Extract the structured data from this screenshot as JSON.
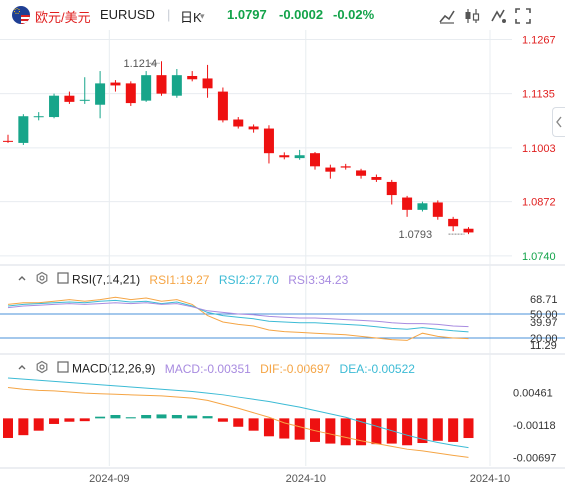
{
  "header": {
    "symbol_cn": "欧元/美元",
    "symbol": "EURUSD",
    "period": "日K",
    "last": "1.0797",
    "change": "-0.0002",
    "change_pct": "-0.02%",
    "toolbar_icons": [
      "line-chart-icon",
      "candle-chart-icon",
      "indicator-icon",
      "fullscreen-icon"
    ]
  },
  "colors": {
    "up": "#17a58a",
    "down": "#ee1111",
    "axis_text": "#13a34a",
    "price_text": "#e02020",
    "grid": "#e8ecf0",
    "rsi1": "#f5a545",
    "rsi2": "#3cbbd5",
    "rsi3": "#a88be0",
    "dif": "#f5a545",
    "dea": "#3cbbd5"
  },
  "rsi_header": {
    "name": "RSI(7,14,21)",
    "rsi1": "RSI1:19.27",
    "rsi2": "RSI2:27.70",
    "rsi3": "RSI3:34.23"
  },
  "macd_header": {
    "name": "MACD(12,26,9)",
    "macd": "MACD:-0.00351",
    "dif": "DIF:-0.00697",
    "dea": "DEA:-0.00522"
  },
  "chart_data": [
    {
      "type": "candlestick",
      "name": "EURUSD daily",
      "y_ticks": [
        "1.1267",
        "1.1135",
        "1.1003",
        "1.0872",
        "1.0740"
      ],
      "ylim": [
        1.0725,
        1.129
      ],
      "high_label": "1.1214",
      "low_label": "1.0793",
      "x_ticks": [
        "2024-09",
        "2024-10",
        "2024-10"
      ],
      "candles": [
        {
          "o": 1.102,
          "h": 1.1035,
          "l": 1.1015,
          "c": 1.1018
        },
        {
          "o": 1.1015,
          "h": 1.1085,
          "l": 1.101,
          "c": 1.108
        },
        {
          "o": 1.1078,
          "h": 1.109,
          "l": 1.107,
          "c": 1.108
        },
        {
          "o": 1.1078,
          "h": 1.1135,
          "l": 1.1075,
          "c": 1.113
        },
        {
          "o": 1.113,
          "h": 1.114,
          "l": 1.111,
          "c": 1.1115
        },
        {
          "o": 1.1118,
          "h": 1.1175,
          "l": 1.111,
          "c": 1.112
        },
        {
          "o": 1.1108,
          "h": 1.119,
          "l": 1.1075,
          "c": 1.116
        },
        {
          "o": 1.1162,
          "h": 1.1168,
          "l": 1.114,
          "c": 1.1155
        },
        {
          "o": 1.116,
          "h": 1.1165,
          "l": 1.1105,
          "c": 1.1112
        },
        {
          "o": 1.1118,
          "h": 1.119,
          "l": 1.1115,
          "c": 1.118
        },
        {
          "o": 1.118,
          "h": 1.1214,
          "l": 1.113,
          "c": 1.1135
        },
        {
          "o": 1.113,
          "h": 1.1195,
          "l": 1.1125,
          "c": 1.118
        },
        {
          "o": 1.1178,
          "h": 1.119,
          "l": 1.1165,
          "c": 1.117
        },
        {
          "o": 1.1172,
          "h": 1.1205,
          "l": 1.1125,
          "c": 1.1148
        },
        {
          "o": 1.114,
          "h": 1.115,
          "l": 1.1065,
          "c": 1.107
        },
        {
          "o": 1.1072,
          "h": 1.1078,
          "l": 1.105,
          "c": 1.1055
        },
        {
          "o": 1.1055,
          "h": 1.106,
          "l": 1.104,
          "c": 1.1048
        },
        {
          "o": 1.105,
          "h": 1.1058,
          "l": 1.0965,
          "c": 1.099
        },
        {
          "o": 1.0985,
          "h": 1.0992,
          "l": 1.0975,
          "c": 1.098
        },
        {
          "o": 1.0978,
          "h": 1.0998,
          "l": 1.0974,
          "c": 1.0985
        },
        {
          "o": 1.099,
          "h": 1.0993,
          "l": 1.095,
          "c": 1.0958
        },
        {
          "o": 1.0955,
          "h": 1.0962,
          "l": 1.0928,
          "c": 1.0945
        },
        {
          "o": 1.0958,
          "h": 1.0964,
          "l": 1.095,
          "c": 1.0955
        },
        {
          "o": 1.0948,
          "h": 1.0952,
          "l": 1.0928,
          "c": 1.0935
        },
        {
          "o": 1.0932,
          "h": 1.0938,
          "l": 1.092,
          "c": 1.0925
        },
        {
          "o": 1.092,
          "h": 1.0925,
          "l": 1.0865,
          "c": 1.0888
        },
        {
          "o": 1.0882,
          "h": 1.0886,
          "l": 1.0835,
          "c": 1.0852
        },
        {
          "o": 1.0852,
          "h": 1.0872,
          "l": 1.0848,
          "c": 1.0868
        },
        {
          "o": 1.087,
          "h": 1.0875,
          "l": 1.0828,
          "c": 1.0835
        },
        {
          "o": 1.083,
          "h": 1.0835,
          "l": 1.08,
          "c": 1.0812
        },
        {
          "o": 1.0806,
          "h": 1.081,
          "l": 1.0793,
          "c": 1.0797
        }
      ]
    },
    {
      "type": "line",
      "name": "RSI",
      "y_ticks": [
        "68.71",
        "50.00",
        "39.97",
        "20.00",
        "11.29"
      ],
      "ylim": [
        5,
        80
      ],
      "hlines": [
        50,
        20
      ],
      "series": [
        {
          "name": "RSI1",
          "values": [
            62,
            64,
            64,
            66,
            68,
            66,
            68,
            71,
            68,
            70,
            66,
            68,
            62,
            48,
            40,
            37,
            35,
            30,
            28,
            27,
            26,
            25,
            24,
            22,
            20,
            18,
            17,
            26,
            22,
            20,
            19.27
          ]
        },
        {
          "name": "RSI2",
          "values": [
            60,
            62,
            63,
            64,
            65,
            64,
            66,
            67,
            65,
            66,
            63,
            65,
            60,
            52,
            48,
            46,
            44,
            41,
            40,
            39,
            39,
            38,
            37,
            36,
            34,
            32,
            31,
            33,
            31,
            29,
            27.7
          ]
        },
        {
          "name": "RSI3",
          "values": [
            58,
            60,
            61,
            62,
            63,
            62,
            63,
            64,
            63,
            64,
            62,
            63,
            59,
            54,
            52,
            50,
            49,
            47,
            46,
            45,
            45,
            44,
            43,
            42,
            41,
            39,
            38,
            38,
            37,
            35,
            34.23
          ]
        }
      ]
    },
    {
      "type": "bar",
      "name": "MACD",
      "y_ticks": [
        "0.00461",
        "-0.00118",
        "-0.00697"
      ],
      "ylim": [
        -0.0085,
        0.0072
      ],
      "macd": [
        -0.0035,
        -0.003,
        -0.0022,
        -0.001,
        -0.0006,
        -0.0005,
        0.0003,
        0.0006,
        0.0002,
        0.0006,
        0.0007,
        0.0006,
        0.0005,
        0.0004,
        -0.0006,
        -0.0015,
        -0.0022,
        -0.0032,
        -0.0036,
        -0.0038,
        -0.0042,
        -0.0045,
        -0.0048,
        -0.0048,
        -0.0046,
        -0.0045,
        -0.0048,
        -0.0044,
        -0.004,
        -0.0042,
        -0.00351
      ],
      "series": [
        {
          "name": "DIF",
          "values": [
            0.0055,
            0.0052,
            0.005,
            0.0049,
            0.0047,
            0.0045,
            0.0044,
            0.0043,
            0.0042,
            0.0041,
            0.004,
            0.0038,
            0.0036,
            0.0032,
            0.0025,
            0.0018,
            0.001,
            0.0002,
            -0.0008,
            -0.0015,
            -0.0022,
            -0.0028,
            -0.0034,
            -0.004,
            -0.0045,
            -0.005,
            -0.0055,
            -0.0058,
            -0.0062,
            -0.0066,
            -0.00697
          ]
        },
        {
          "name": "DEA",
          "values": [
            0.0072,
            0.007,
            0.0068,
            0.0066,
            0.0064,
            0.0062,
            0.006,
            0.0058,
            0.0056,
            0.0054,
            0.0052,
            0.005,
            0.0048,
            0.0045,
            0.0042,
            0.0038,
            0.0034,
            0.003,
            0.0025,
            0.002,
            0.0014,
            0.0008,
            0.0002,
            -0.0006,
            -0.0014,
            -0.0022,
            -0.003,
            -0.0037,
            -0.0043,
            -0.0048,
            -0.00522
          ]
        }
      ]
    }
  ]
}
